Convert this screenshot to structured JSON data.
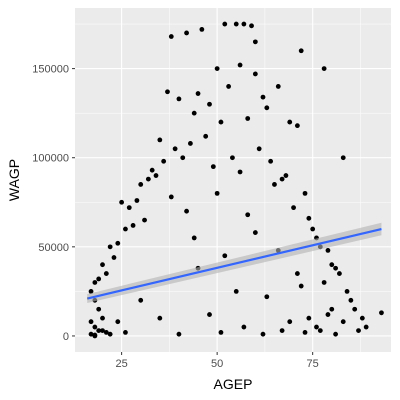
{
  "chart_data": {
    "type": "scatter",
    "xlabel": "AGEP",
    "ylabel": "WAGP",
    "xlim": [
      12.8,
      95.5
    ],
    "ylim": [
      -9000,
      184000
    ],
    "x_ticks": [
      25,
      50,
      75
    ],
    "x_tick_labels": [
      "25",
      "50",
      "75"
    ],
    "y_ticks": [
      0,
      50000,
      100000,
      150000
    ],
    "y_tick_labels": [
      "0",
      "50000",
      "100000",
      "150000"
    ],
    "grid": true,
    "legend": "none",
    "colors": {
      "panel": "#ebebeb",
      "grid": "#ffffff",
      "points": "#000000",
      "fit_line": "#3366ff",
      "confidence_band": "#b3b3b3"
    },
    "series": [
      {
        "kind": "points",
        "x": [
          38,
          42,
          46,
          52,
          55,
          57,
          59,
          60,
          50,
          56,
          60,
          72,
          78,
          37,
          40,
          45,
          48,
          53,
          62,
          66,
          44,
          51,
          58,
          63,
          69,
          71,
          83,
          35,
          39,
          43,
          47,
          54,
          61,
          33,
          36,
          41,
          49,
          64,
          68,
          30,
          32,
          34,
          56,
          65,
          67,
          73,
          25,
          27,
          29,
          38,
          50,
          70,
          74,
          26,
          28,
          31,
          42,
          58,
          75,
          76,
          22,
          24,
          44,
          60,
          77,
          79,
          20,
          23,
          52,
          66,
          80,
          81,
          82,
          18,
          19,
          21,
          45,
          71,
          78,
          84,
          85,
          86,
          93,
          17,
          18,
          19,
          20,
          30,
          55,
          63,
          72,
          88,
          89,
          17,
          18,
          19,
          21,
          24,
          35,
          48,
          57,
          69,
          74,
          79,
          80,
          83,
          87,
          17,
          18,
          18,
          20,
          22,
          26,
          40,
          51,
          62,
          67,
          73,
          76,
          77,
          81
        ],
        "y": [
          168000,
          170000,
          172000,
          175000,
          175000,
          175000,
          174000,
          165000,
          150000,
          152000,
          147000,
          160000,
          150000,
          137000,
          133000,
          136000,
          130000,
          140000,
          134000,
          140000,
          125000,
          120000,
          122000,
          128000,
          120000,
          118000,
          100000,
          110000,
          105000,
          108000,
          112000,
          100000,
          105000,
          93000,
          98000,
          100000,
          95000,
          98000,
          90000,
          85000,
          88000,
          90000,
          92000,
          85000,
          88000,
          80000,
          75000,
          72000,
          76000,
          78000,
          80000,
          72000,
          66000,
          60000,
          62000,
          65000,
          70000,
          68000,
          60000,
          55000,
          50000,
          52000,
          55000,
          58000,
          50000,
          48000,
          40000,
          44000,
          45000,
          48000,
          40000,
          38000,
          35000,
          30000,
          32000,
          35000,
          38000,
          35000,
          30000,
          25000,
          20000,
          15000,
          13000,
          25000,
          20000,
          15000,
          10000,
          20000,
          25000,
          22000,
          28000,
          10000,
          5000,
          8000,
          5000,
          3000,
          2000,
          8000,
          10000,
          12000,
          5000,
          8000,
          10000,
          12000,
          15000,
          8000,
          3000,
          1000,
          0,
          500,
          3000,
          1000,
          2000,
          1000,
          2000,
          1000,
          3000,
          2000,
          5000,
          3000,
          1000
        ]
      },
      {
        "kind": "fit_line",
        "x": [
          16,
          93
        ],
        "y": [
          21000,
          60000
        ],
        "band_upper": [
          23500,
          63500
        ],
        "band_lower": [
          18500,
          56500
        ]
      }
    ]
  }
}
